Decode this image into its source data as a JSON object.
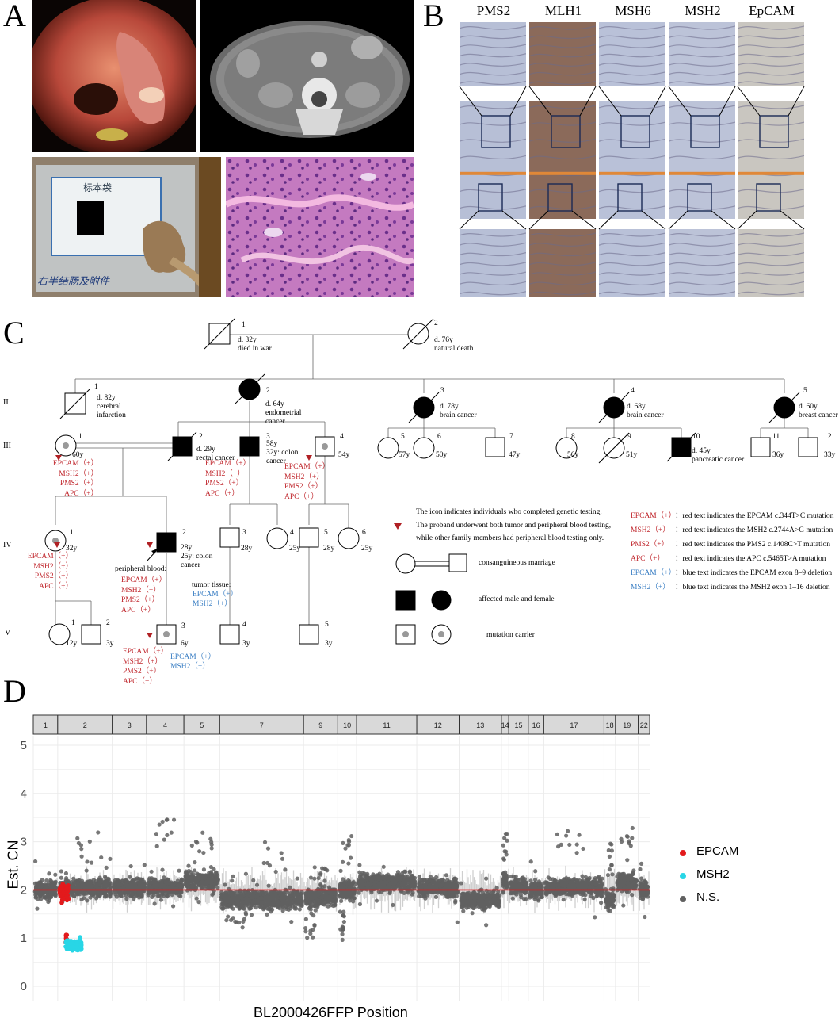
{
  "panels": {
    "a": "A",
    "b": "B",
    "c": "C",
    "d": "D"
  },
  "ihc": {
    "markers": [
      "PMS2",
      "MLH1",
      "MSH6",
      "MSH2",
      "EpCAM"
    ],
    "tone": [
      "#b7bfd6",
      "#8b6a5a",
      "#b9c1d8",
      "#bcc3d8",
      "#c9c6c0"
    ]
  },
  "specimen": {
    "bag_label": "标本袋",
    "handwriting": "右半结肠及附件"
  },
  "pedigree": {
    "generations": [
      "I",
      "II",
      "III",
      "IV",
      "V"
    ],
    "individuals": {
      "I1": {
        "num": "1",
        "info": [
          "d. 32y",
          "died in war"
        ]
      },
      "I2": {
        "num": "2",
        "info": [
          "d. 76y",
          "natural death"
        ]
      },
      "II1": {
        "num": "1",
        "info": [
          "d. 82y",
          "cerebral",
          "infarction"
        ]
      },
      "II2": {
        "num": "2",
        "info": [
          "d. 64y",
          "endometrial",
          "cancer"
        ]
      },
      "II3": {
        "num": "3",
        "info": [
          "d. 78y",
          "brain cancer"
        ]
      },
      "II4": {
        "num": "4",
        "info": [
          "d. 68y",
          "brain cancer"
        ]
      },
      "II5": {
        "num": "5",
        "info": [
          "d. 60y",
          "breast cancer"
        ]
      },
      "III1": {
        "num": "1",
        "age": "60y"
      },
      "III2": {
        "num": "2",
        "info": [
          "d. 29y",
          "rectal cancer"
        ]
      },
      "III3": {
        "num": "3",
        "info": [
          "58y",
          "32y: colon",
          "cancer"
        ]
      },
      "III4": {
        "num": "4",
        "age": "54y"
      },
      "III5": {
        "num": "5",
        "age": "57y"
      },
      "III6": {
        "num": "6",
        "age": "50y"
      },
      "III7": {
        "num": "7",
        "age": "47y"
      },
      "III8": {
        "num": "8",
        "age": "56y"
      },
      "III9": {
        "num": "9",
        "age": "51y"
      },
      "III10": {
        "num": "10",
        "info": [
          "d. 45y",
          "pancreatic cancer"
        ]
      },
      "III11": {
        "num": "11",
        "age": "36y"
      },
      "III12": {
        "num": "12",
        "age": "33y"
      },
      "IV1": {
        "num": "1",
        "age": "32y"
      },
      "IV2": {
        "num": "2",
        "info": [
          "28y",
          "25y:  colon",
          "cancer"
        ]
      },
      "IV3": {
        "num": "3",
        "age": "28y"
      },
      "IV4": {
        "num": "4",
        "age": "25y"
      },
      "IV5": {
        "num": "5",
        "age": "28y"
      },
      "IV6": {
        "num": "6",
        "age": "25y"
      },
      "V1": {
        "num": "1",
        "age": "12y"
      },
      "V2": {
        "num": "2",
        "age": "3y"
      },
      "V3": {
        "num": "3",
        "age": "6y"
      },
      "V4": {
        "num": "4",
        "age": "3y"
      },
      "V5": {
        "num": "5",
        "age": "3y"
      }
    },
    "mutation_lines": [
      "EPCAM（+）",
      "MSH2（+）",
      "PMS2（+）",
      "APC（+）"
    ],
    "peripheral_blood": "peripheral blood:",
    "tumor_tissue": "tumor tissue:",
    "tumor_lines": [
      "EPCAM（+）",
      "MSH2（+）"
    ],
    "legend": {
      "triangle_1": "The icon indicates individuals who completed genetic testing.",
      "triangle_2": "The proband underwent both tumor and peripheral blood testing,",
      "triangle_3": "while other family members had peripheral blood testing only.",
      "consanguineous": "consanguineous marriage",
      "affected": "affected male and female",
      "carrier": "mutation carrier",
      "mut": [
        {
          "gene": "EPCAM（+）",
          "text": "：red text indicates the EPCAM c.344T>C mutation",
          "color": "red"
        },
        {
          "gene": "MSH2（+）",
          "text": "：red text indicates the MSH2 c.2744A>G mutation",
          "color": "red"
        },
        {
          "gene": "PMS2（+）",
          "text": "：red text indicates the PMS2 c.1408C>T mutation",
          "color": "red"
        },
        {
          "gene": "APC（+）",
          "text": "：red text indicates the APC c.5465T>A mutation",
          "color": "red"
        },
        {
          "gene": "EPCAM（+）",
          "text": "：blue text indicates the EPCAM exon 8–9 deletion",
          "color": "blue"
        },
        {
          "gene": "MSH2（+）",
          "text": "：blue text indicates the MSH2 exon 1–16 deletion",
          "color": "blue"
        }
      ]
    }
  },
  "chart_data": {
    "type": "scatter",
    "xlabel": "BL2000426FFP Position",
    "ylabel": "Est. CN",
    "ylim": [
      0,
      5
    ],
    "yticks": [
      0,
      1,
      2,
      3,
      4,
      5
    ],
    "chromosomes": [
      {
        "name": "1",
        "width": 30
      },
      {
        "name": "2",
        "width": 67
      },
      {
        "name": "3",
        "width": 42
      },
      {
        "name": "4",
        "width": 46
      },
      {
        "name": "5",
        "width": 44
      },
      {
        "name": "7",
        "width": 103
      },
      {
        "name": "9",
        "width": 42
      },
      {
        "name": "10",
        "width": 23
      },
      {
        "name": "11",
        "width": 74
      },
      {
        "name": "12",
        "width": 52
      },
      {
        "name": "13",
        "width": 52
      },
      {
        "name": "14",
        "width": 9
      },
      {
        "name": "15",
        "width": 24
      },
      {
        "name": "16",
        "width": 19
      },
      {
        "name": "17",
        "width": 74
      },
      {
        "name": "18",
        "width": 14
      },
      {
        "name": "19",
        "width": 28
      },
      {
        "name": "22",
        "width": 14
      }
    ],
    "baseline": 2,
    "series": [
      {
        "name": "EPCAM",
        "color": "#e31a1c",
        "cluster": {
          "chrom": "2",
          "cn_mean": 1.95,
          "cn_spread": 0.15
        }
      },
      {
        "name": "MSH2",
        "color": "#28d6e6",
        "cluster": {
          "chrom": "2",
          "cn_mean": 0.85,
          "cn_spread": 0.14
        }
      },
      {
        "name": "N.S.",
        "color": "#606060"
      }
    ],
    "chrom_cn_mean": {
      "1": 2.0,
      "2": 2.05,
      "3": 2.05,
      "4": 2.05,
      "5": 2.2,
      "7": 1.8,
      "9": 1.85,
      "10": 2.0,
      "11": 2.15,
      "12": 2.05,
      "13": 1.8,
      "14": 2.2,
      "15": 2.05,
      "16": 2.0,
      "17": 2.05,
      "18": 1.8,
      "19": 2.15,
      "22": 2.0
    },
    "outlier_max": {
      "2": 3.2,
      "4": 3.7,
      "5": 3.2,
      "7": 3.0,
      "9": 2.5,
      "10": 3.3,
      "14": 3.2,
      "17": 3.3,
      "18": 3.0,
      "19": 3.3
    }
  }
}
